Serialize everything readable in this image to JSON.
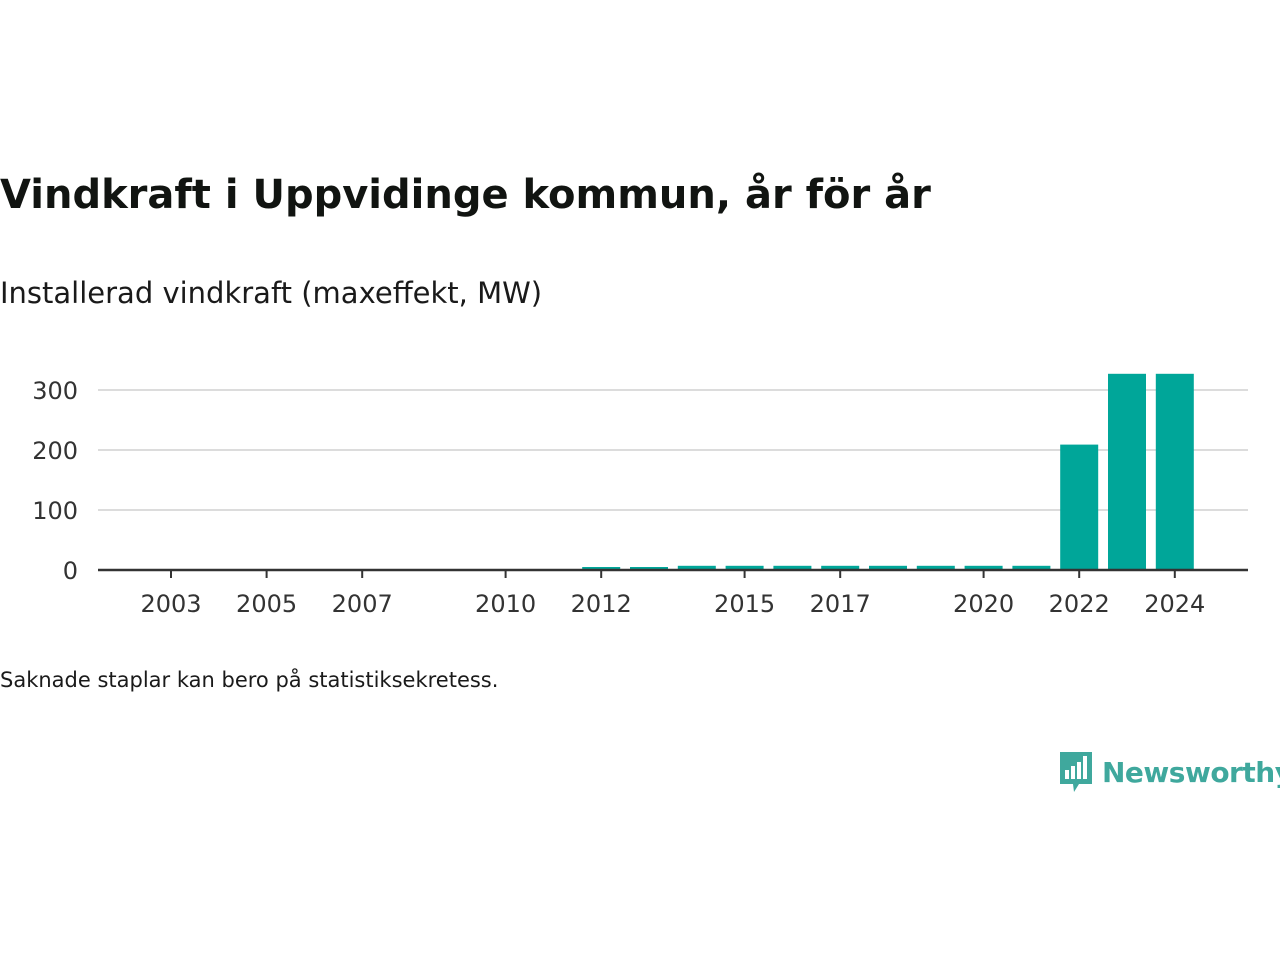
{
  "header": {
    "title": "Vindkraft i Uppvidinge kommun, år för år",
    "subtitle": "Installerad vindkraft (maxeffekt, MW)"
  },
  "footer": {
    "note": "Saknade staplar kan bero på statistiksekretess.",
    "brand": "Newsworthy"
  },
  "colors": {
    "bar": "#00a699",
    "grid": "#dcdcdc",
    "axis": "#333333",
    "brand": "#3fa89d"
  },
  "chart_data": {
    "type": "bar",
    "title": "Vindkraft i Uppvidinge kommun, år för år",
    "subtitle": "Installerad vindkraft (maxeffekt, MW)",
    "xlabel": "",
    "ylabel": "",
    "x": [
      2003,
      2004,
      2005,
      2006,
      2007,
      2008,
      2009,
      2010,
      2011,
      2012,
      2013,
      2014,
      2015,
      2016,
      2017,
      2018,
      2019,
      2020,
      2021,
      2022,
      2023,
      2024
    ],
    "values": [
      0,
      0,
      0,
      0,
      0,
      0,
      0,
      0,
      0,
      5,
      5,
      7,
      7,
      7,
      7,
      7,
      7,
      7,
      7,
      209,
      327,
      327
    ],
    "x_tick_labels": [
      "2003",
      "2005",
      "2007",
      "2010",
      "2012",
      "2015",
      "2017",
      "2020",
      "2022",
      "2024"
    ],
    "y_ticks": [
      0,
      100,
      200,
      300
    ],
    "ylim": [
      0,
      330
    ],
    "grid": true,
    "legend": "none"
  }
}
